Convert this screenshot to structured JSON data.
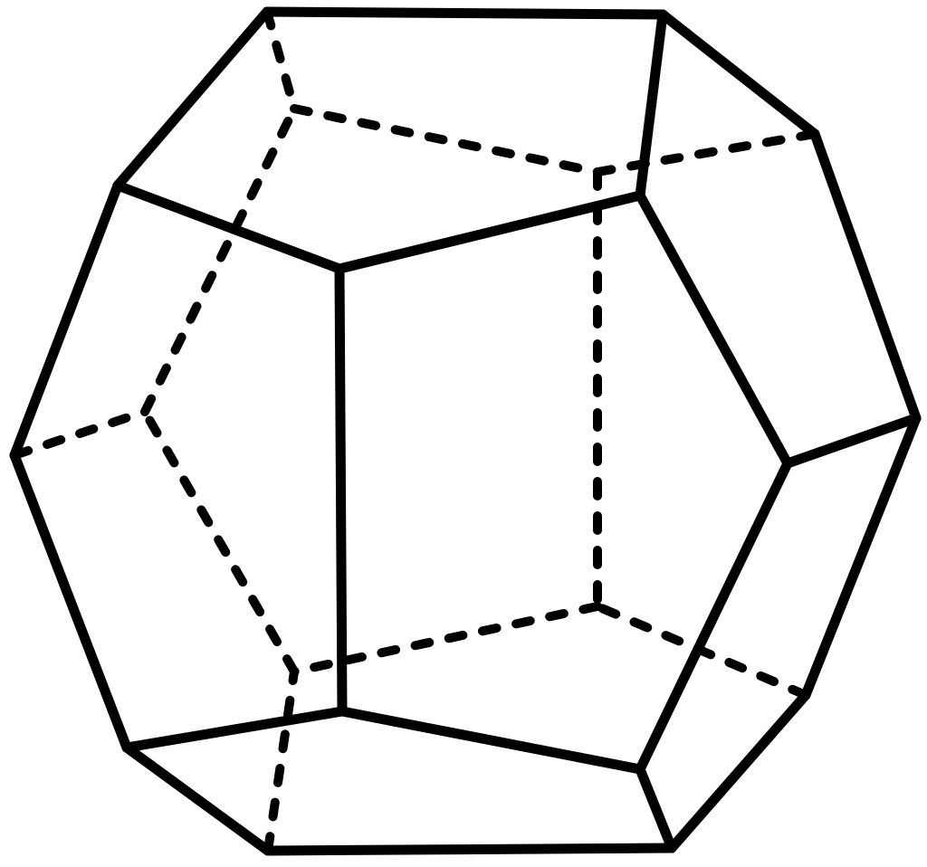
{
  "figure": {
    "subject": "dodecahedron",
    "style": "line drawing with solid visible edges and dashed hidden edges",
    "colors": {
      "background": "#ffffff",
      "edge": "#000000"
    }
  }
}
